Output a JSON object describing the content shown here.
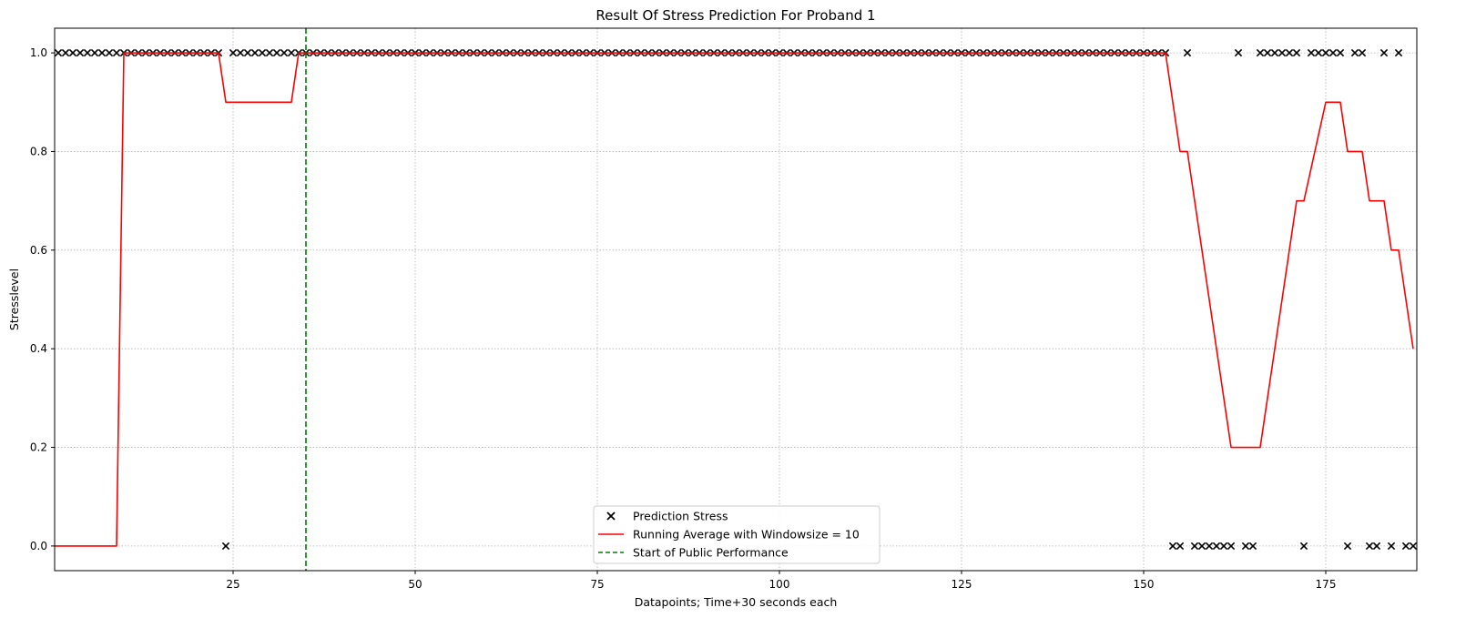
{
  "chart_data": {
    "type": "line",
    "title": "Result Of Stress Prediction For Proband 1",
    "xlabel": "Datapoints; Time+30 seconds each",
    "ylabel": "Stresslevel",
    "xlim": [
      0.5,
      187.5
    ],
    "ylim": [
      -0.05,
      1.05
    ],
    "xticks": [
      25,
      50,
      75,
      100,
      125,
      150,
      175
    ],
    "xtick_labels": [
      "25",
      "50",
      "75",
      "100",
      "125",
      "150",
      "175"
    ],
    "yticks": [
      0.0,
      0.2,
      0.4,
      0.6,
      0.8,
      1.0
    ],
    "ytick_labels": [
      "0.0",
      "0.2",
      "0.4",
      "0.6",
      "0.8",
      "1.0"
    ],
    "grid": true,
    "legend_position": "lower-center",
    "series": [
      {
        "name": "Prediction Stress",
        "kind": "scatter",
        "marker": "x",
        "color": "#000000",
        "x": [
          1,
          2,
          3,
          4,
          5,
          6,
          7,
          8,
          9,
          10,
          11,
          12,
          13,
          14,
          15,
          16,
          17,
          18,
          19,
          20,
          21,
          22,
          23,
          24,
          25,
          26,
          27,
          28,
          29,
          30,
          31,
          32,
          33,
          34,
          35,
          36,
          37,
          38,
          39,
          40,
          41,
          42,
          43,
          44,
          45,
          46,
          47,
          48,
          49,
          50,
          51,
          52,
          53,
          54,
          55,
          56,
          57,
          58,
          59,
          60,
          61,
          62,
          63,
          64,
          65,
          66,
          67,
          68,
          69,
          70,
          71,
          72,
          73,
          74,
          75,
          76,
          77,
          78,
          79,
          80,
          81,
          82,
          83,
          84,
          85,
          86,
          87,
          88,
          89,
          90,
          91,
          92,
          93,
          94,
          95,
          96,
          97,
          98,
          99,
          100,
          101,
          102,
          103,
          104,
          105,
          106,
          107,
          108,
          109,
          110,
          111,
          112,
          113,
          114,
          115,
          116,
          117,
          118,
          119,
          120,
          121,
          122,
          123,
          124,
          125,
          126,
          127,
          128,
          129,
          130,
          131,
          132,
          133,
          134,
          135,
          136,
          137,
          138,
          139,
          140,
          141,
          142,
          143,
          144,
          145,
          146,
          147,
          148,
          149,
          150,
          151,
          152,
          153,
          154,
          155,
          156,
          157,
          158,
          159,
          160,
          161,
          162,
          163,
          164,
          165,
          166,
          167,
          168,
          169,
          170,
          171,
          172,
          173,
          174,
          175,
          176,
          177,
          178,
          179,
          180,
          181,
          182,
          183,
          184,
          185,
          186,
          187
        ],
        "y": [
          1,
          1,
          1,
          1,
          1,
          1,
          1,
          1,
          1,
          1,
          1,
          1,
          1,
          1,
          1,
          1,
          1,
          1,
          1,
          1,
          1,
          1,
          1,
          0,
          1,
          1,
          1,
          1,
          1,
          1,
          1,
          1,
          1,
          1,
          1,
          1,
          1,
          1,
          1,
          1,
          1,
          1,
          1,
          1,
          1,
          1,
          1,
          1,
          1,
          1,
          1,
          1,
          1,
          1,
          1,
          1,
          1,
          1,
          1,
          1,
          1,
          1,
          1,
          1,
          1,
          1,
          1,
          1,
          1,
          1,
          1,
          1,
          1,
          1,
          1,
          1,
          1,
          1,
          1,
          1,
          1,
          1,
          1,
          1,
          1,
          1,
          1,
          1,
          1,
          1,
          1,
          1,
          1,
          1,
          1,
          1,
          1,
          1,
          1,
          1,
          1,
          1,
          1,
          1,
          1,
          1,
          1,
          1,
          1,
          1,
          1,
          1,
          1,
          1,
          1,
          1,
          1,
          1,
          1,
          1,
          1,
          1,
          1,
          1,
          1,
          1,
          1,
          1,
          1,
          1,
          1,
          1,
          1,
          1,
          1,
          1,
          1,
          1,
          1,
          1,
          1,
          1,
          1,
          1,
          1,
          1,
          1,
          1,
          1,
          1,
          1,
          1,
          1,
          0,
          0,
          1,
          0,
          0,
          0,
          0,
          0,
          0,
          1,
          0,
          0,
          1,
          1,
          1,
          1,
          1,
          1,
          0,
          1,
          1,
          1,
          1,
          1,
          0,
          1,
          1,
          0,
          0,
          1,
          0,
          1,
          0,
          0
        ]
      },
      {
        "name": "Running Average with Windowsize = 10",
        "kind": "line",
        "color": "#ff0000",
        "x": [
          0.5,
          9,
          10,
          23,
          24,
          33,
          34,
          153,
          155,
          156,
          162,
          166,
          171,
          172,
          175,
          177,
          178,
          180,
          181,
          183,
          184,
          185,
          187
        ],
        "y": [
          0,
          0,
          1,
          1,
          0.9,
          0.9,
          1,
          1,
          0.8,
          0.8,
          0.2,
          0.2,
          0.7,
          0.7,
          0.9,
          0.9,
          0.8,
          0.8,
          0.7,
          0.7,
          0.6,
          0.6,
          0.4
        ]
      },
      {
        "name": "Start of Public Performance",
        "kind": "vline",
        "color": "#008000",
        "x": 35
      }
    ]
  }
}
